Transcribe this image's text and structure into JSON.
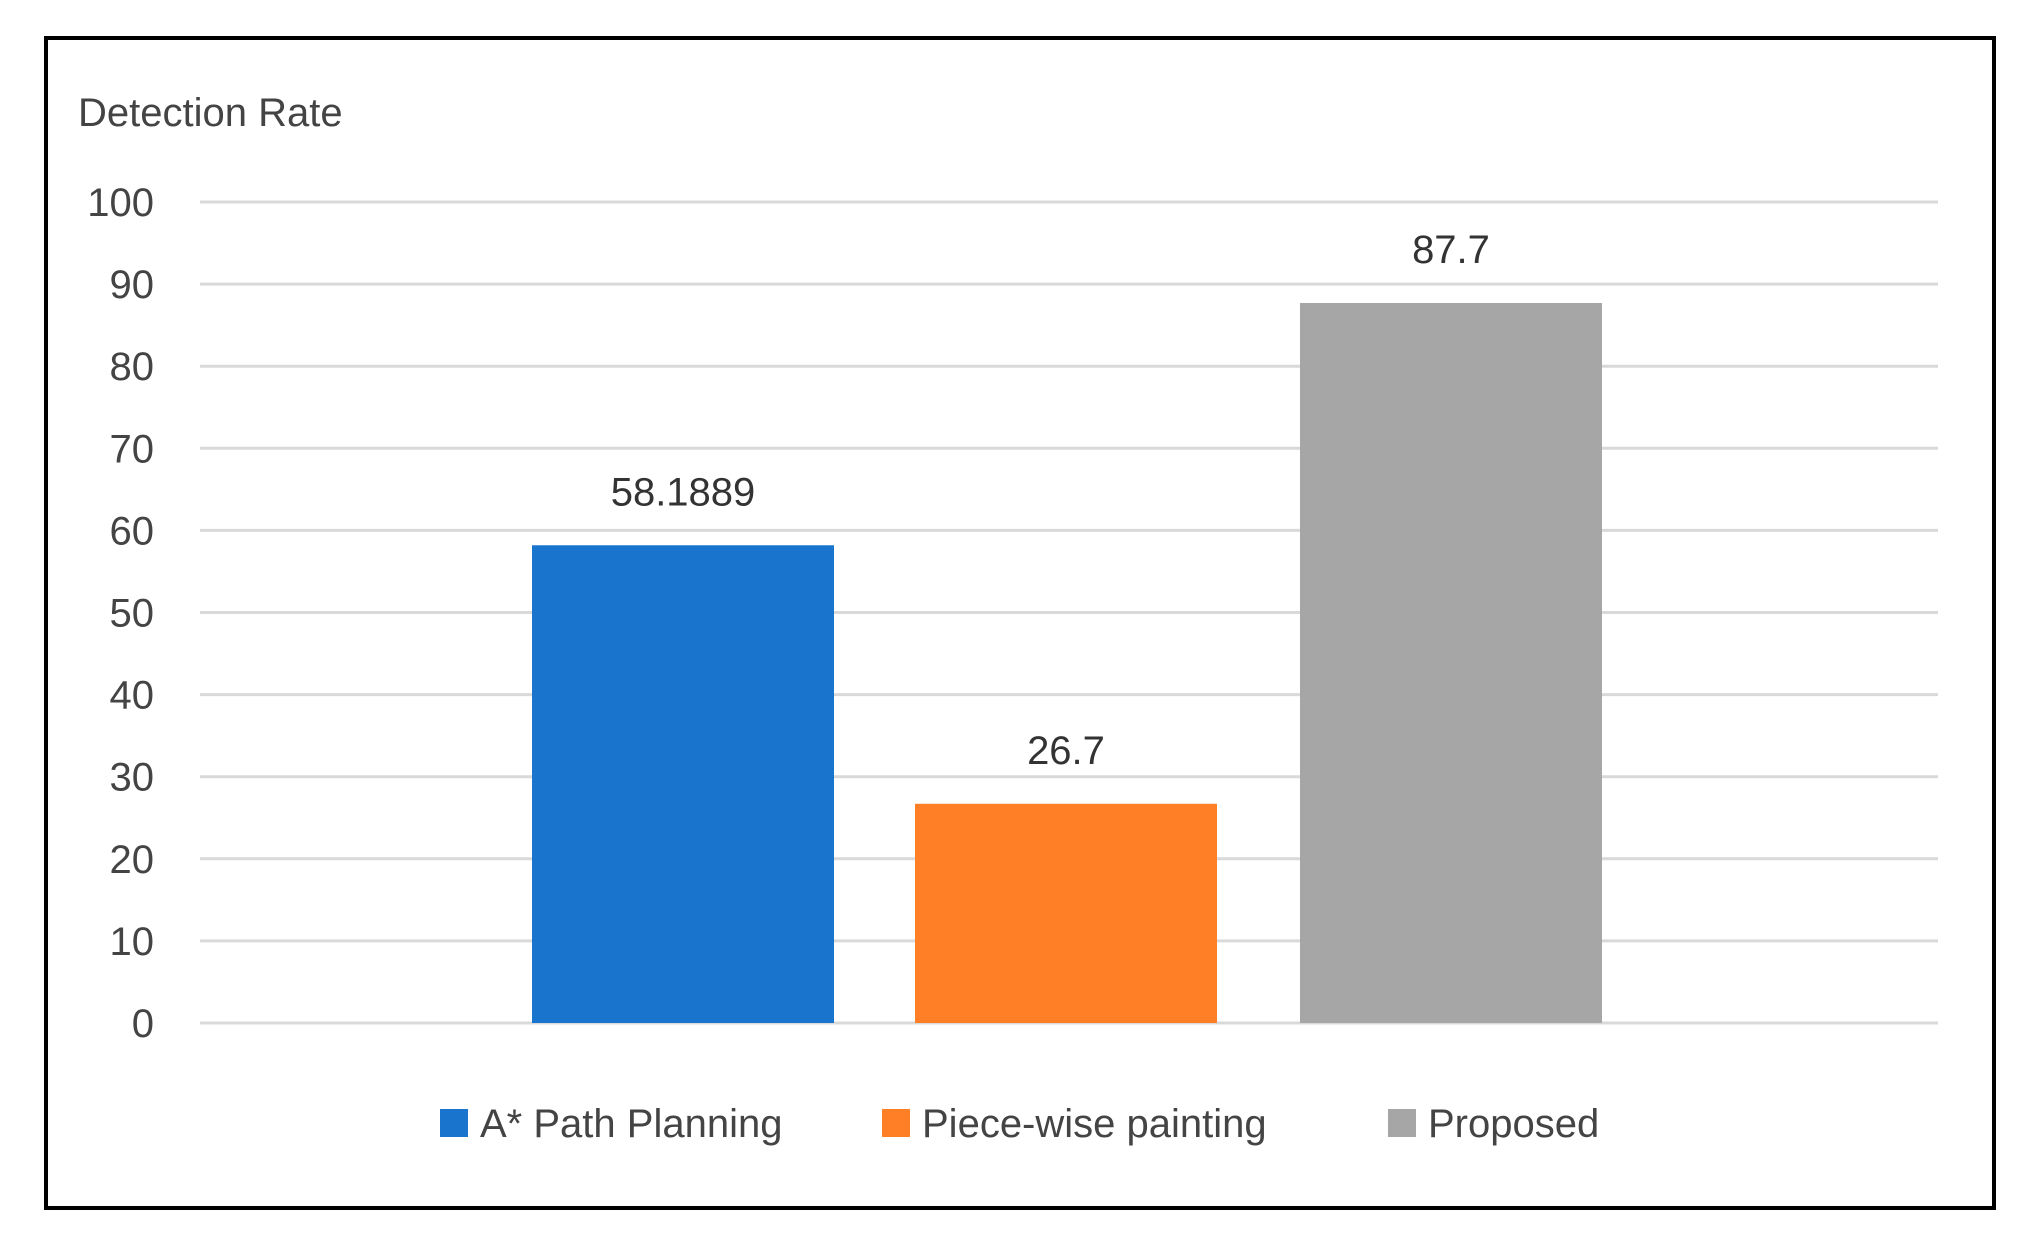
{
  "chart_data": {
    "type": "bar",
    "ylabel": "Detection Rate",
    "ylim": [
      0,
      100
    ],
    "yticks": [
      0,
      10,
      20,
      30,
      40,
      50,
      60,
      70,
      80,
      90,
      100
    ],
    "grid": true,
    "legend_position": "bottom",
    "series": [
      {
        "name": "A* Path Planning",
        "value": 58.1889,
        "label": "58.1889",
        "color": "#1874CD"
      },
      {
        "name": "Piece-wise painting",
        "value": 26.7,
        "label": "26.7",
        "color": "#FF7F27"
      },
      {
        "name": "Proposed",
        "value": 87.7,
        "label": "87.7",
        "color": "#A6A6A6"
      }
    ]
  }
}
